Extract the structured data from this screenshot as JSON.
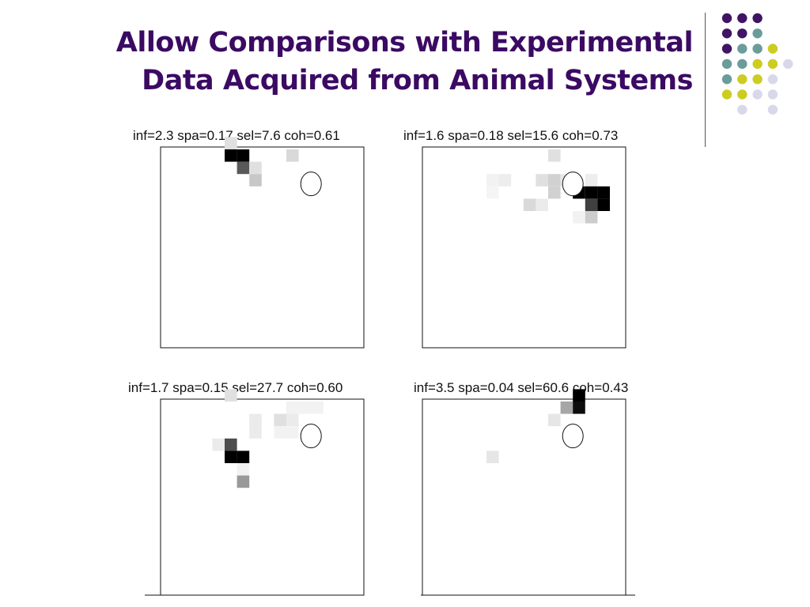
{
  "slide": {
    "title_line1": "Allow Comparisons with Experimental",
    "title_line2": "Data Acquired from Animal Systems"
  },
  "colors": {
    "title": "#3b0a63",
    "dot_purple": "#3f1465",
    "dot_teal": "#6a9c9a",
    "dot_olive": "#cccc22",
    "dot_lavender": "#d8d8ea"
  },
  "decoration_dots": [
    [
      "purple",
      "purple",
      "purple",
      null,
      null
    ],
    [
      "purple",
      "purple",
      "teal",
      null,
      null
    ],
    [
      "purple",
      "teal",
      "teal",
      "olive",
      null
    ],
    [
      "teal",
      "teal",
      "olive",
      "olive",
      "lavender"
    ],
    [
      "teal",
      "olive",
      "olive",
      "lavender",
      null
    ],
    [
      "olive",
      "olive",
      "lavender",
      "lavender",
      null
    ],
    [
      null,
      "lavender",
      null,
      "lavender",
      null
    ]
  ],
  "panels": [
    {
      "caption": "inf=2.3 spa=0.17 sel=7.6 coh=0.61",
      "cells": [
        {
          "col": 5,
          "row": -1,
          "intensity": 0.12
        },
        {
          "col": 5,
          "row": 0,
          "intensity": 1.0
        },
        {
          "col": 6,
          "row": 0,
          "intensity": 1.0
        },
        {
          "col": 6,
          "row": 1,
          "intensity": 0.65
        },
        {
          "col": 7,
          "row": 1,
          "intensity": 0.12
        },
        {
          "col": 7,
          "row": 2,
          "intensity": 0.22
        },
        {
          "col": 10,
          "row": 0,
          "intensity": 0.15
        }
      ],
      "ring": {
        "col": 11.5,
        "row": 2.3
      }
    },
    {
      "caption": "inf=1.6 spa=0.18 sel=15.6 coh=0.73",
      "cells": [
        {
          "col": 10,
          "row": 0,
          "intensity": 0.12
        },
        {
          "col": 5,
          "row": 2,
          "intensity": 0.05
        },
        {
          "col": 6,
          "row": 2,
          "intensity": 0.07
        },
        {
          "col": 9,
          "row": 2,
          "intensity": 0.12
        },
        {
          "col": 10,
          "row": 2,
          "intensity": 0.18
        },
        {
          "col": 11,
          "row": 2,
          "intensity": 0.1
        },
        {
          "col": 13,
          "row": 2,
          "intensity": 0.07
        },
        {
          "col": 5,
          "row": 3,
          "intensity": 0.04
        },
        {
          "col": 10,
          "row": 3,
          "intensity": 0.18
        },
        {
          "col": 12,
          "row": 3,
          "intensity": 1.0
        },
        {
          "col": 13,
          "row": 3,
          "intensity": 1.0
        },
        {
          "col": 14,
          "row": 3,
          "intensity": 1.0
        },
        {
          "col": 8,
          "row": 4,
          "intensity": 0.15
        },
        {
          "col": 9,
          "row": 4,
          "intensity": 0.08
        },
        {
          "col": 13,
          "row": 4,
          "intensity": 0.75
        },
        {
          "col": 14,
          "row": 4,
          "intensity": 1.0
        },
        {
          "col": 12,
          "row": 5,
          "intensity": 0.05
        },
        {
          "col": 13,
          "row": 5,
          "intensity": 0.2
        }
      ],
      "ring": {
        "col": 11.5,
        "row": 2.3
      }
    },
    {
      "caption": "inf=1.7 spa=0.15 sel=27.7 coh=0.60",
      "cells": [
        {
          "col": 5,
          "row": -1,
          "intensity": 0.12
        },
        {
          "col": 10,
          "row": 0,
          "intensity": 0.05
        },
        {
          "col": 11,
          "row": 0,
          "intensity": 0.05
        },
        {
          "col": 12,
          "row": 0,
          "intensity": 0.05
        },
        {
          "col": 7,
          "row": 1,
          "intensity": 0.08
        },
        {
          "col": 9,
          "row": 1,
          "intensity": 0.12
        },
        {
          "col": 10,
          "row": 1,
          "intensity": 0.08
        },
        {
          "col": 7,
          "row": 2,
          "intensity": 0.08
        },
        {
          "col": 9,
          "row": 2,
          "intensity": 0.05
        },
        {
          "col": 10,
          "row": 2,
          "intensity": 0.05
        },
        {
          "col": 4,
          "row": 3,
          "intensity": 0.08
        },
        {
          "col": 5,
          "row": 3,
          "intensity": 0.7
        },
        {
          "col": 5,
          "row": 4,
          "intensity": 1.0
        },
        {
          "col": 6,
          "row": 4,
          "intensity": 1.0
        },
        {
          "col": 6,
          "row": 5,
          "intensity": 0.05
        },
        {
          "col": 6,
          "row": 6,
          "intensity": 0.4
        }
      ],
      "ring": {
        "col": 11.5,
        "row": 2.3
      }
    },
    {
      "caption": "inf=3.5 spa=0.04 sel=60.6 coh=0.43",
      "cells": [
        {
          "col": 12,
          "row": -1,
          "intensity": 1.0
        },
        {
          "col": 11,
          "row": 0,
          "intensity": 0.35
        },
        {
          "col": 12,
          "row": 0,
          "intensity": 0.95
        },
        {
          "col": 10,
          "row": 1,
          "intensity": 0.1
        },
        {
          "col": 5,
          "row": 4,
          "intensity": 0.1
        }
      ],
      "ring": {
        "col": 11.5,
        "row": 2.3
      }
    }
  ]
}
